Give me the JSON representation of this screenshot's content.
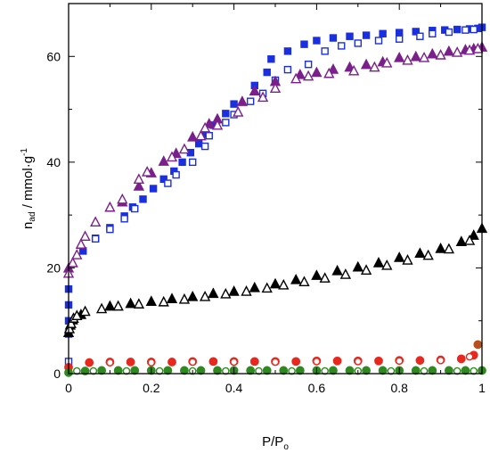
{
  "chart_data": {
    "type": "scatter",
    "xlabel": "P/P",
    "xlabel_sub": "o",
    "ylabel_base": "n",
    "ylabel_sub": "ad",
    "ylabel_rest": " / mmol·g",
    "ylabel_sup": "-1",
    "xlim": [
      0,
      1
    ],
    "ylim": [
      0,
      70
    ],
    "xticks": [
      0,
      0.2,
      0.4,
      0.6,
      0.8,
      1
    ],
    "xtick_labels": [
      "0",
      "0.2",
      "0.4",
      "0.6",
      "0.8",
      "1"
    ],
    "yticks": [
      0,
      20,
      40,
      60
    ],
    "ytick_labels": [
      "0",
      "20",
      "40",
      "60"
    ],
    "grid": false,
    "series": [
      {
        "marker": "square-filled",
        "color": "#1a2fe0",
        "points": [
          [
            0,
            7.5
          ],
          [
            0,
            10
          ],
          [
            0,
            13
          ],
          [
            0,
            16
          ],
          [
            0.035,
            23.2
          ],
          [
            0.065,
            25.6
          ],
          [
            0.1,
            27.6
          ],
          [
            0.135,
            29.8
          ],
          [
            0.155,
            31.5
          ],
          [
            0.18,
            33
          ],
          [
            0.205,
            35
          ],
          [
            0.23,
            36.8
          ],
          [
            0.255,
            38.3
          ],
          [
            0.275,
            40
          ],
          [
            0.295,
            41.8
          ],
          [
            0.315,
            43.5
          ],
          [
            0.33,
            45.3
          ],
          [
            0.35,
            47
          ],
          [
            0.38,
            49.2
          ],
          [
            0.4,
            51
          ],
          [
            0.45,
            54.5
          ],
          [
            0.48,
            57
          ],
          [
            0.49,
            59.5
          ],
          [
            0.53,
            61
          ],
          [
            0.57,
            62.3
          ],
          [
            0.6,
            63
          ],
          [
            0.64,
            63.5
          ],
          [
            0.68,
            63.8
          ],
          [
            0.72,
            64
          ],
          [
            0.76,
            64.3
          ],
          [
            0.8,
            64.5
          ],
          [
            0.84,
            64.7
          ],
          [
            0.88,
            64.9
          ],
          [
            0.91,
            65
          ],
          [
            0.94,
            65.1
          ],
          [
            0.97,
            65.2
          ],
          [
            0.99,
            65.3
          ],
          [
            1.0,
            65.5
          ]
        ]
      },
      {
        "marker": "square-open",
        "color": "#1a2fe0",
        "points": [
          [
            0,
            2.3
          ],
          [
            0.065,
            25.5
          ],
          [
            0.1,
            27.3
          ],
          [
            0.135,
            29.3
          ],
          [
            0.16,
            31.2
          ],
          [
            0.24,
            36
          ],
          [
            0.26,
            37.6
          ],
          [
            0.3,
            40
          ],
          [
            0.33,
            43
          ],
          [
            0.34,
            45
          ],
          [
            0.38,
            47.5
          ],
          [
            0.4,
            49
          ],
          [
            0.44,
            51.5
          ],
          [
            0.47,
            53
          ],
          [
            0.5,
            55.5
          ],
          [
            0.53,
            57.5
          ],
          [
            0.58,
            58.5
          ],
          [
            0.62,
            61
          ],
          [
            0.66,
            62
          ],
          [
            0.7,
            62.5
          ],
          [
            0.75,
            63
          ],
          [
            0.8,
            63.3
          ],
          [
            0.85,
            63.8
          ],
          [
            0.88,
            64.3
          ],
          [
            0.92,
            64.6
          ],
          [
            0.96,
            65
          ],
          [
            0.98,
            65.1
          ]
        ]
      },
      {
        "marker": "triangle-filled",
        "color": "#7b1f8c",
        "points": [
          [
            0,
            20
          ],
          [
            0.13,
            32.5
          ],
          [
            0.17,
            35.5
          ],
          [
            0.2,
            38
          ],
          [
            0.23,
            40.2
          ],
          [
            0.26,
            41.7
          ],
          [
            0.3,
            44.8
          ],
          [
            0.34,
            47.3
          ],
          [
            0.36,
            48.2
          ],
          [
            0.42,
            51.5
          ],
          [
            0.45,
            53.5
          ],
          [
            0.5,
            55.3
          ],
          [
            0.56,
            56.6
          ],
          [
            0.6,
            57
          ],
          [
            0.64,
            57.6
          ],
          [
            0.68,
            58
          ],
          [
            0.72,
            58.5
          ],
          [
            0.76,
            59
          ],
          [
            0.8,
            59.8
          ],
          [
            0.84,
            60
          ],
          [
            0.88,
            60.5
          ],
          [
            0.92,
            61
          ],
          [
            0.96,
            61.3
          ],
          [
            0.98,
            61.5
          ],
          [
            1.0,
            61.8
          ]
        ]
      },
      {
        "marker": "triangle-open",
        "color": "#7b1f8c",
        "points": [
          [
            0,
            19
          ],
          [
            0.01,
            21
          ],
          [
            0.02,
            22.5
          ],
          [
            0.03,
            24.5
          ],
          [
            0.04,
            26
          ],
          [
            0.065,
            28.7
          ],
          [
            0.1,
            31.5
          ],
          [
            0.13,
            33
          ],
          [
            0.17,
            36.8
          ],
          [
            0.19,
            38.2
          ],
          [
            0.25,
            41
          ],
          [
            0.28,
            42.5
          ],
          [
            0.32,
            45
          ],
          [
            0.33,
            46.5
          ],
          [
            0.36,
            47
          ],
          [
            0.41,
            49.5
          ],
          [
            0.47,
            52.3
          ],
          [
            0.5,
            54
          ],
          [
            0.55,
            55.8
          ],
          [
            0.58,
            56.3
          ],
          [
            0.63,
            56.8
          ],
          [
            0.69,
            57.3
          ],
          [
            0.74,
            58
          ],
          [
            0.77,
            58.8
          ],
          [
            0.82,
            59.3
          ],
          [
            0.86,
            59.8
          ],
          [
            0.9,
            60.3
          ],
          [
            0.94,
            60.8
          ],
          [
            0.97,
            61.2
          ],
          [
            0.99,
            61.5
          ]
        ]
      },
      {
        "marker": "triangle-filled",
        "color": "#000000",
        "points": [
          [
            0,
            7.8
          ],
          [
            0.004,
            9.2
          ],
          [
            0.01,
            10.2
          ],
          [
            0.03,
            11.2
          ],
          [
            0.1,
            12.8
          ],
          [
            0.15,
            13.3
          ],
          [
            0.2,
            13.7
          ],
          [
            0.25,
            14.2
          ],
          [
            0.3,
            14.6
          ],
          [
            0.35,
            15.2
          ],
          [
            0.4,
            15.6
          ],
          [
            0.45,
            16.3
          ],
          [
            0.5,
            17
          ],
          [
            0.55,
            17.8
          ],
          [
            0.6,
            18.6
          ],
          [
            0.65,
            19.5
          ],
          [
            0.7,
            20.2
          ],
          [
            0.75,
            21
          ],
          [
            0.8,
            22
          ],
          [
            0.85,
            22.8
          ],
          [
            0.9,
            23.7
          ],
          [
            0.95,
            25
          ],
          [
            0.98,
            26.2
          ],
          [
            1.0,
            27.5
          ]
        ]
      },
      {
        "marker": "triangle-open",
        "color": "#000000",
        "points": [
          [
            0.002,
            8.5
          ],
          [
            0.006,
            9.5
          ],
          [
            0.012,
            10.5
          ],
          [
            0.02,
            11
          ],
          [
            0.04,
            11.8
          ],
          [
            0.08,
            12.3
          ],
          [
            0.12,
            12.8
          ],
          [
            0.17,
            13.2
          ],
          [
            0.23,
            13.6
          ],
          [
            0.28,
            14.1
          ],
          [
            0.33,
            14.6
          ],
          [
            0.38,
            15.1
          ],
          [
            0.43,
            15.6
          ],
          [
            0.48,
            16.2
          ],
          [
            0.52,
            16.8
          ],
          [
            0.57,
            17.4
          ],
          [
            0.62,
            18.1
          ],
          [
            0.67,
            18.8
          ],
          [
            0.72,
            19.6
          ],
          [
            0.77,
            20.5
          ],
          [
            0.82,
            21.5
          ],
          [
            0.87,
            22.4
          ],
          [
            0.92,
            23.6
          ],
          [
            0.97,
            25.2
          ]
        ]
      },
      {
        "marker": "circle-filled",
        "color": "#e8281e",
        "points": [
          [
            0,
            1.2
          ],
          [
            0.05,
            2.1
          ],
          [
            0.1,
            2.2
          ],
          [
            0.15,
            2.2
          ],
          [
            0.2,
            2.2
          ],
          [
            0.25,
            2.2
          ],
          [
            0.3,
            2.3
          ],
          [
            0.35,
            2.3
          ],
          [
            0.4,
            2.3
          ],
          [
            0.45,
            2.3
          ],
          [
            0.5,
            2.3
          ],
          [
            0.55,
            2.3
          ],
          [
            0.6,
            2.4
          ],
          [
            0.65,
            2.4
          ],
          [
            0.7,
            2.4
          ],
          [
            0.75,
            2.4
          ],
          [
            0.8,
            2.5
          ],
          [
            0.85,
            2.5
          ],
          [
            0.9,
            2.6
          ],
          [
            0.95,
            2.8
          ],
          [
            0.98,
            3.5
          ]
        ]
      },
      {
        "marker": "circle-filled",
        "color": "#b5501e",
        "points": [
          [
            0.99,
            5.5
          ]
        ]
      },
      {
        "marker": "circle-open",
        "color": "#e8281e",
        "points": [
          [
            0.1,
            2.1
          ],
          [
            0.2,
            2.1
          ],
          [
            0.3,
            2.2
          ],
          [
            0.4,
            2.2
          ],
          [
            0.5,
            2.2
          ],
          [
            0.6,
            2.3
          ],
          [
            0.7,
            2.3
          ],
          [
            0.8,
            2.4
          ],
          [
            0.9,
            2.5
          ],
          [
            0.97,
            3.2
          ]
        ]
      },
      {
        "marker": "circle-filled",
        "color": "#2e8a1e",
        "points": [
          [
            0,
            0.2
          ],
          [
            0.04,
            0.5
          ],
          [
            0.08,
            0.6
          ],
          [
            0.12,
            0.6
          ],
          [
            0.16,
            0.6
          ],
          [
            0.2,
            0.6
          ],
          [
            0.24,
            0.6
          ],
          [
            0.28,
            0.6
          ],
          [
            0.32,
            0.6
          ],
          [
            0.36,
            0.6
          ],
          [
            0.4,
            0.6
          ],
          [
            0.44,
            0.6
          ],
          [
            0.48,
            0.6
          ],
          [
            0.52,
            0.6
          ],
          [
            0.56,
            0.6
          ],
          [
            0.6,
            0.6
          ],
          [
            0.64,
            0.6
          ],
          [
            0.68,
            0.6
          ],
          [
            0.72,
            0.6
          ],
          [
            0.76,
            0.6
          ],
          [
            0.8,
            0.6
          ],
          [
            0.84,
            0.6
          ],
          [
            0.88,
            0.6
          ],
          [
            0.92,
            0.6
          ],
          [
            0.96,
            0.6
          ],
          [
            1.0,
            0.6
          ]
        ]
      },
      {
        "marker": "circle-open",
        "color": "#2e8a1e",
        "points": [
          [
            0.02,
            0.5
          ],
          [
            0.06,
            0.5
          ],
          [
            0.14,
            0.5
          ],
          [
            0.22,
            0.5
          ],
          [
            0.3,
            0.5
          ],
          [
            0.38,
            0.5
          ],
          [
            0.46,
            0.5
          ],
          [
            0.54,
            0.5
          ],
          [
            0.62,
            0.5
          ],
          [
            0.7,
            0.5
          ],
          [
            0.78,
            0.5
          ],
          [
            0.86,
            0.5
          ],
          [
            0.94,
            0.5
          ],
          [
            0.98,
            0.5
          ]
        ]
      }
    ]
  }
}
